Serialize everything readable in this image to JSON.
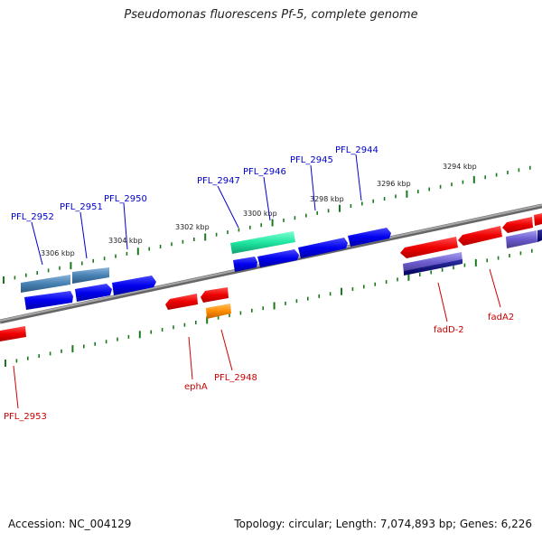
{
  "title": "Pseudomonas fluorescens Pf-5, complete genome",
  "footer": {
    "accession": "Accession: NC_004129",
    "summary": "Topology: circular; Length: 7,074,893 bp; Genes: 6,226"
  },
  "scale_labels": [
    "3306 kbp",
    "3304 kbp",
    "3302 kbp",
    "3300 kbp",
    "3298 kbp",
    "3296 kbp",
    "3294 kbp"
  ],
  "colors": {
    "forward_label": "#0000cc",
    "reverse_label": "#cc0000",
    "backbone": "#888888",
    "ticks": "#1a7a1a"
  },
  "genes_forward": [
    {
      "name": "PFL_2952",
      "color": "#0000ee"
    },
    {
      "name": "PFL_2951",
      "color": "#0000ee"
    },
    {
      "name": "PFL_2950",
      "color": "#0000ee"
    },
    {
      "name": "PFL_2947",
      "color": "#0000ee"
    },
    {
      "name": "PFL_2946",
      "color": "#0000ee"
    },
    {
      "name": "PFL_2945",
      "color": "#0000ee"
    },
    {
      "name": "PFL_2944",
      "color": "#0000ee"
    }
  ],
  "genes_reverse": [
    {
      "name": "PFL_2953",
      "color": "#ee0000"
    },
    {
      "name": "ephA",
      "color": "#ee0000"
    },
    {
      "name": "PFL_2948",
      "color": "#ff8800"
    },
    {
      "name": "fadD-2",
      "color": "#ee0000"
    },
    {
      "name": "fadA2",
      "color": "#ee0000"
    }
  ]
}
